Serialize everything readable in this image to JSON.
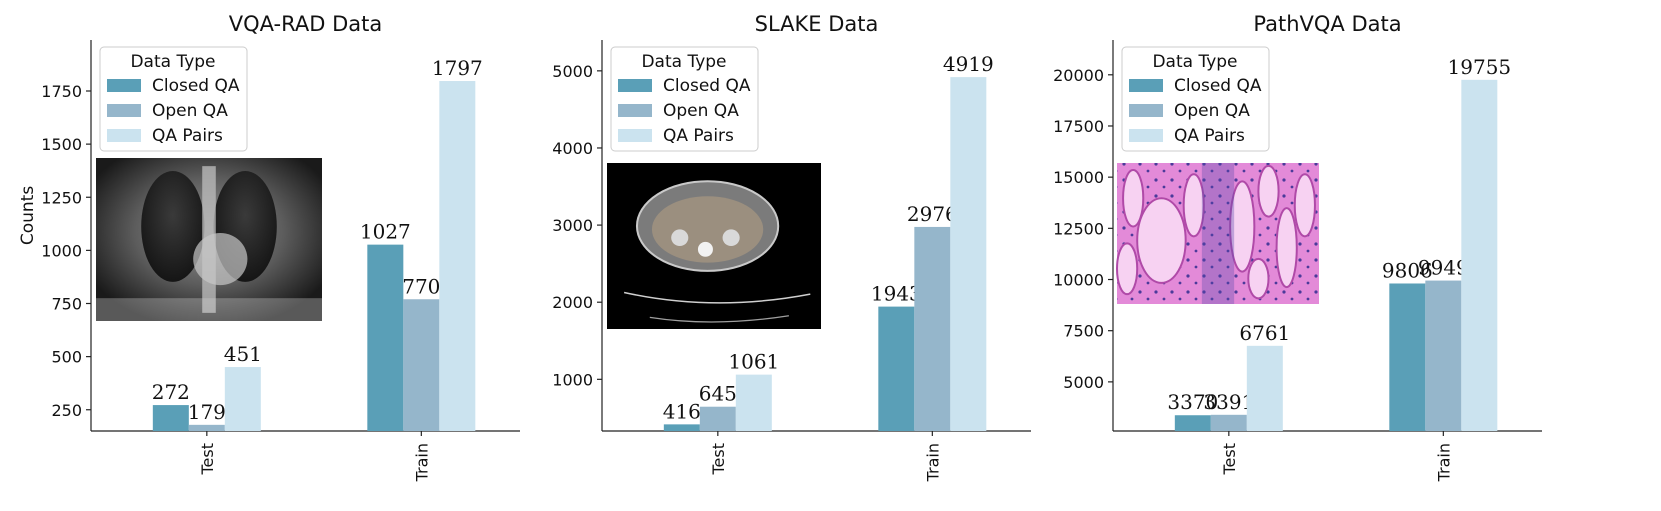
{
  "chart_data": [
    {
      "type": "bar",
      "title": "VQA-RAD Data",
      "ylabel": "Counts",
      "xlabel": "",
      "categories": [
        "Test",
        "Train"
      ],
      "series": [
        {
          "name": "Closed QA",
          "values": [
            272,
            1027
          ],
          "color": "#5a9fb7"
        },
        {
          "name": "Open QA",
          "values": [
            179,
            770
          ],
          "color": "#95b6cb"
        },
        {
          "name": "QA Pairs",
          "values": [
            451,
            1797
          ],
          "color": "#cbe3ef"
        }
      ],
      "ylim": [
        150,
        1990
      ],
      "yticks": [
        250,
        500,
        750,
        1000,
        1250,
        1500,
        1750
      ],
      "legend": {
        "title": "Data Type",
        "placement": "top-left"
      },
      "inset_image": "chest X-ray",
      "grid": false
    },
    {
      "type": "bar",
      "title": "SLAKE Data",
      "ylabel": "",
      "xlabel": "",
      "categories": [
        "Test",
        "Train"
      ],
      "series": [
        {
          "name": "Closed QA",
          "values": [
            416,
            1943
          ],
          "color": "#5a9fb7"
        },
        {
          "name": "Open QA",
          "values": [
            645,
            2976
          ],
          "color": "#95b6cb"
        },
        {
          "name": "QA Pairs",
          "values": [
            1061,
            4919
          ],
          "color": "#cbe3ef"
        }
      ],
      "ylim": [
        330,
        5400
      ],
      "yticks": [
        1000,
        2000,
        3000,
        4000,
        5000
      ],
      "legend": {
        "title": "Data Type",
        "placement": "top-left"
      },
      "inset_image": "abdominal CT scan",
      "grid": false
    },
    {
      "type": "bar",
      "title": "PathVQA Data",
      "ylabel": "",
      "xlabel": "",
      "categories": [
        "Test",
        "Train"
      ],
      "series": [
        {
          "name": "Closed QA",
          "values": [
            3370,
            9806
          ],
          "color": "#5a9fb7"
        },
        {
          "name": "Open QA",
          "values": [
            3391,
            9949
          ],
          "color": "#95b6cb"
        },
        {
          "name": "QA Pairs",
          "values": [
            6761,
            19755
          ],
          "color": "#cbe3ef"
        }
      ],
      "ylim": [
        2600,
        21700
      ],
      "yticks": [
        5000,
        7500,
        10000,
        12500,
        15000,
        17500,
        20000
      ],
      "legend": {
        "title": "Data Type",
        "placement": "top-left"
      },
      "inset_image": "pathology histology slide",
      "grid": false
    }
  ]
}
